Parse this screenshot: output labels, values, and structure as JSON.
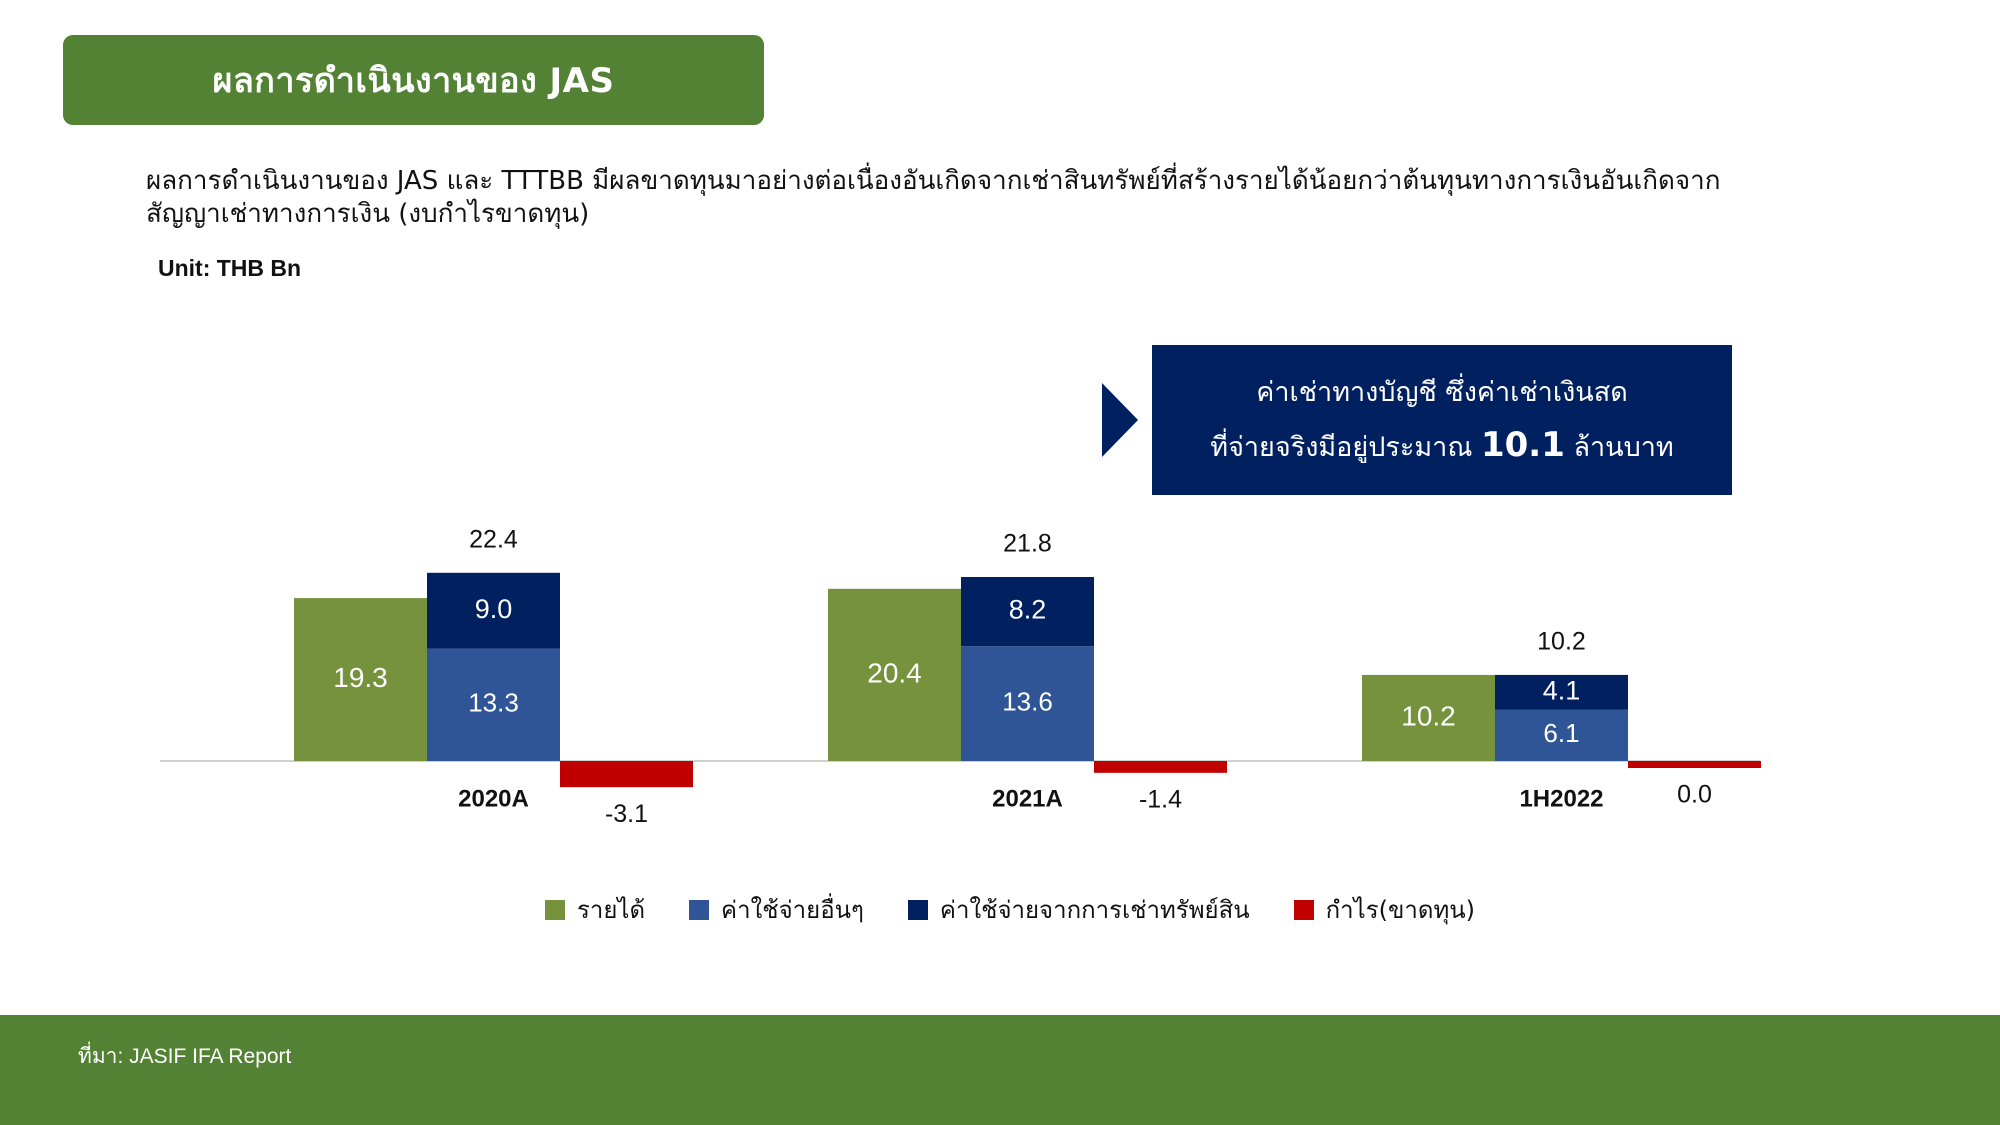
{
  "header": {
    "title": "ผลการดำเนินงานของ JAS"
  },
  "subtitle": "ผลการดำเนินงานของ JAS และ TTTBB มีผลขาดทุนมาอย่างต่อเนื่องอันเกิดจากเช่าสินทรัพย์ที่สร้างรายได้น้อยกว่าต้นทุนทางการเงินอันเกิดจากสัญญาเช่าทางการเงิน (งบกำไรขาดทุน)",
  "unit_label": "Unit: THB Bn",
  "callout": {
    "line1": "ค่าเช่าทางบัญชี ซึ่งค่าเช่าเงินสด",
    "line2_prefix": "ที่จ่ายจริงมีอยู่ประมาณ",
    "line2_value": "10.1",
    "line2_suffix": "ล้านบาท"
  },
  "footer": {
    "source": "ที่มา: JASIF IFA Report"
  },
  "colors": {
    "revenue": "#76923C",
    "other_expense": "#2F5597",
    "lease_expense": "#002060",
    "profit_loss": "#C00000",
    "header_green": "#548235"
  },
  "chart_data": {
    "type": "bar",
    "categories": [
      "2020A",
      "2021A",
      "1H2022"
    ],
    "series": [
      {
        "name": "รายได้",
        "values": [
          19.3,
          20.4,
          10.2
        ]
      },
      {
        "name": "ค่าใช้จ่ายอื่นๆ",
        "values": [
          13.3,
          13.6,
          6.1
        ]
      },
      {
        "name": "ค่าใช้จ่ายจากการเช่าทรัพย์สิน",
        "values": [
          9.0,
          8.2,
          4.1
        ]
      },
      {
        "name": "กำไร(ขาดทุน)",
        "values": [
          -3.1,
          -1.4,
          0.0
        ]
      }
    ],
    "expense_totals": [
      22.4,
      21.8,
      10.2
    ],
    "stacked_series": [
      "ค่าใช้จ่ายอื่นๆ",
      "ค่าใช้จ่ายจากการเช่าทรัพย์สิน"
    ],
    "value_labels": {
      "revenue": [
        "19.3",
        "20.4",
        "10.2"
      ],
      "other_expense": [
        "13.3",
        "13.6",
        "6.1"
      ],
      "lease_expense": [
        "9.0",
        "8.2",
        "4.1"
      ],
      "profit_loss": [
        "-3.1",
        "-1.4",
        "0.0"
      ],
      "expense_totals": [
        "22.4",
        "21.8",
        "10.2"
      ]
    },
    "unit": "THB Bn",
    "title": "ผลการดำเนินงานของ JAS",
    "xlabel": "",
    "ylabel": "",
    "grid": false,
    "legend_position": "bottom"
  }
}
